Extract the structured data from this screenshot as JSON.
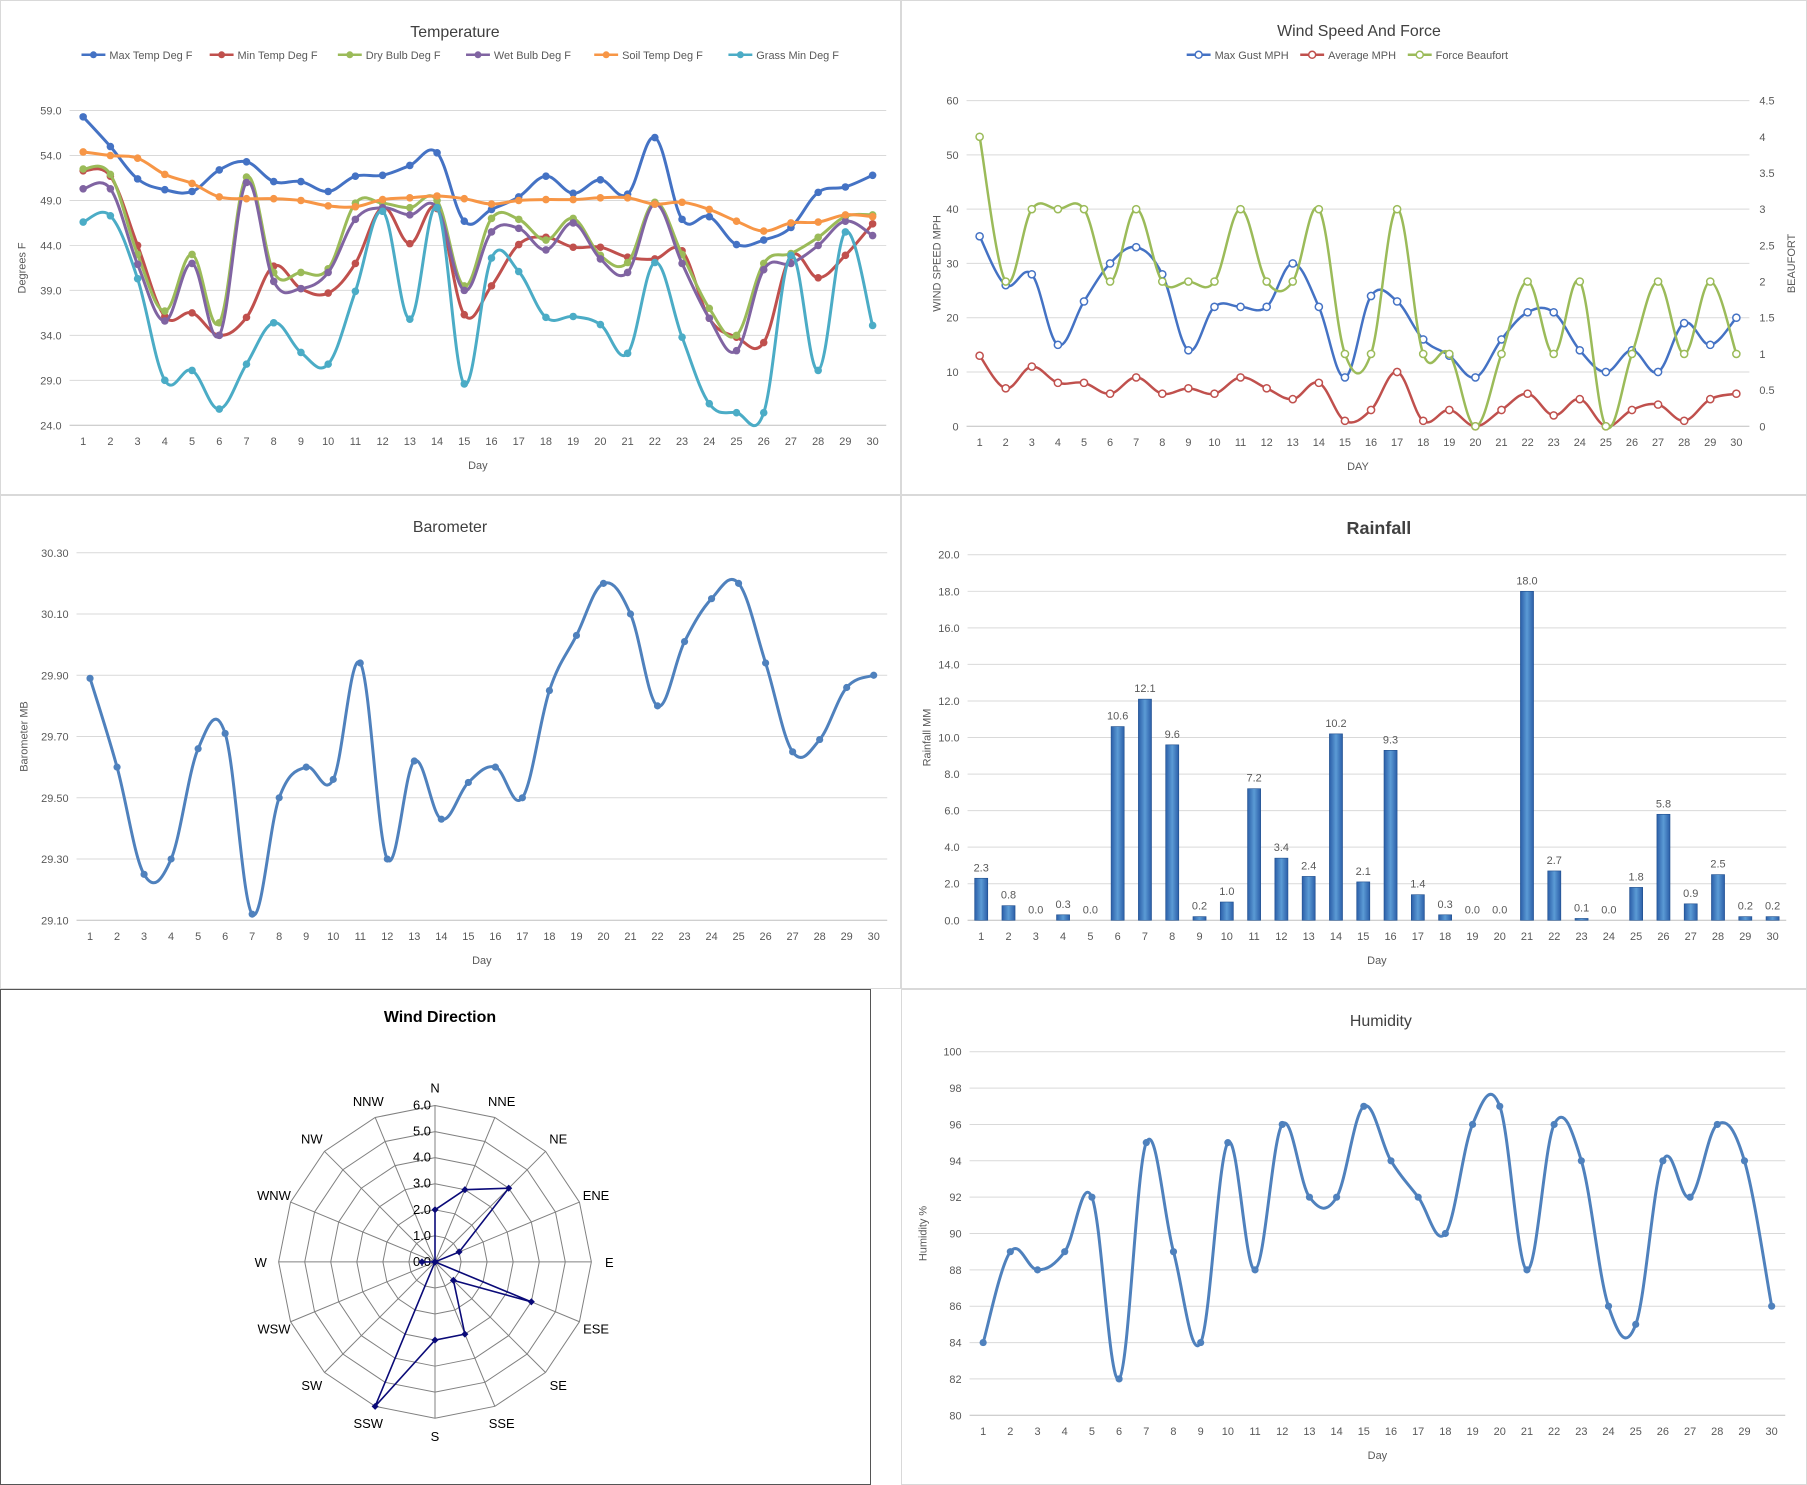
{
  "colors": {
    "axis_text": "#595959",
    "title_text": "#404040",
    "grid": "#d9d9d9",
    "blue": "#4472c4",
    "red": "#c0504d",
    "green": "#9bbb59",
    "purple": "#8064a2",
    "orange": "#f79646",
    "teal": "#4bacc6",
    "navy": "#0a0a78",
    "baro_blue": "#4f81bd"
  },
  "chart_data": [
    {
      "id": "temperature",
      "type": "line",
      "title": "Temperature",
      "xlabel": "Day",
      "ylabel": "Degrees F",
      "x": [
        1,
        2,
        3,
        4,
        5,
        6,
        7,
        8,
        9,
        10,
        11,
        12,
        13,
        14,
        15,
        16,
        17,
        18,
        19,
        20,
        21,
        22,
        23,
        24,
        25,
        26,
        27,
        28,
        29,
        30
      ],
      "ylim": [
        24.0,
        59.0
      ],
      "yticks": [
        "24.0",
        "29.0",
        "34.0",
        "39.0",
        "44.0",
        "49.0",
        "54.0",
        "59.0"
      ],
      "legend_position": "top",
      "grid": true,
      "series": [
        {
          "name": "Max Temp Deg F",
          "color": "#4472c4",
          "values": [
            58.3,
            55.0,
            51.4,
            50.2,
            50.0,
            52.4,
            53.3,
            51.1,
            51.1,
            50.0,
            51.7,
            51.8,
            52.9,
            54.3,
            46.7,
            48.0,
            49.4,
            51.7,
            49.8,
            51.3,
            49.7,
            56.0,
            46.9,
            47.2,
            44.1,
            44.6,
            46.0,
            49.9,
            50.5,
            51.8
          ]
        },
        {
          "name": "Min Temp Deg F",
          "color": "#c0504d",
          "values": [
            52.3,
            51.7,
            44.0,
            36.1,
            36.5,
            34.0,
            36.0,
            41.7,
            39.2,
            38.7,
            42.0,
            48.2,
            44.2,
            48.1,
            36.3,
            39.5,
            44.1,
            44.9,
            43.8,
            43.8,
            42.7,
            42.5,
            43.4,
            35.9,
            33.8,
            33.2,
            42.8,
            40.4,
            42.9,
            46.4
          ]
        },
        {
          "name": "Dry Bulb Deg F",
          "color": "#9bbb59",
          "values": [
            52.5,
            51.9,
            43.0,
            36.7,
            43.0,
            35.4,
            51.6,
            41.0,
            41.0,
            41.4,
            48.7,
            48.7,
            48.2,
            49.0,
            39.5,
            47.0,
            46.9,
            44.6,
            47.0,
            42.9,
            42.1,
            48.8,
            43.0,
            37.0,
            34.0,
            42.0,
            43.1,
            44.9,
            47.2,
            47.4
          ]
        },
        {
          "name": "Wet Bulb Deg F",
          "color": "#8064a2",
          "values": [
            50.3,
            50.3,
            41.9,
            35.6,
            42.0,
            34.0,
            51.0,
            40.0,
            39.2,
            41.0,
            46.9,
            48.2,
            47.4,
            48.2,
            39.0,
            45.5,
            45.9,
            43.5,
            46.5,
            42.5,
            41.0,
            48.6,
            42.0,
            35.9,
            32.3,
            41.3,
            42.0,
            44.0,
            46.7,
            45.1
          ]
        },
        {
          "name": "Soil Temp Deg F",
          "color": "#f79646",
          "values": [
            54.4,
            54.0,
            53.7,
            51.9,
            50.9,
            49.4,
            49.2,
            49.2,
            49.0,
            48.4,
            48.3,
            49.1,
            49.3,
            49.5,
            49.2,
            48.6,
            49.0,
            49.1,
            49.1,
            49.3,
            49.3,
            48.6,
            48.8,
            48.0,
            46.7,
            45.6,
            46.5,
            46.6,
            47.4,
            47.2
          ]
        },
        {
          "name": "Grass Min Deg F",
          "color": "#4bacc6",
          "values": [
            46.6,
            47.3,
            40.3,
            29.0,
            30.1,
            25.8,
            30.8,
            35.4,
            32.1,
            30.8,
            38.9,
            47.8,
            35.8,
            48.2,
            28.6,
            42.6,
            41.1,
            36.0,
            36.1,
            35.2,
            32.0,
            42.1,
            33.8,
            26.4,
            25.4,
            25.4,
            42.9,
            30.1,
            45.5,
            35.1
          ]
        }
      ]
    },
    {
      "id": "wind_speed",
      "type": "line",
      "title": "Wind Speed And Force",
      "xlabel": "DAY",
      "ylabel": "WIND SPEED MPH",
      "y2label": "BEAUFORT",
      "x": [
        1,
        2,
        3,
        4,
        5,
        6,
        7,
        8,
        9,
        10,
        11,
        12,
        13,
        14,
        15,
        16,
        17,
        18,
        19,
        20,
        21,
        22,
        23,
        24,
        25,
        26,
        27,
        28,
        29,
        30
      ],
      "ylim": [
        0,
        60
      ],
      "yticks": [
        "0",
        "10",
        "20",
        "30",
        "40",
        "50",
        "60"
      ],
      "y2lim": [
        0,
        4.5
      ],
      "y2ticks": [
        "0",
        "0.5",
        "1",
        "1.5",
        "2",
        "2.5",
        "3",
        "3.5",
        "4",
        "4.5"
      ],
      "legend_position": "top",
      "grid": true,
      "series": [
        {
          "name": "Max Gust MPH",
          "color": "#4472c4",
          "axis": "left",
          "values": [
            35,
            26,
            28,
            15,
            23,
            30,
            33,
            28,
            14,
            22,
            22,
            22,
            30,
            22,
            9,
            24,
            23,
            16,
            13,
            9,
            16,
            21,
            21,
            14,
            10,
            14,
            10,
            19,
            15,
            20
          ]
        },
        {
          "name": "Average MPH",
          "color": "#c0504d",
          "axis": "left",
          "values": [
            13,
            7,
            11,
            8,
            8,
            6,
            9,
            6,
            7,
            6,
            9,
            7,
            5,
            8,
            1,
            3,
            10,
            1,
            3,
            0,
            3,
            6,
            2,
            5,
            0,
            3,
            4,
            1,
            5,
            6
          ]
        },
        {
          "name": "Force Beaufort",
          "color": "#9bbb59",
          "axis": "right",
          "values": [
            4,
            2,
            3,
            3,
            3,
            2,
            3,
            2,
            2,
            2,
            3,
            2,
            2,
            3,
            1,
            1,
            3,
            1,
            1,
            0,
            1,
            2,
            1,
            2,
            0,
            1,
            2,
            1,
            2,
            1
          ]
        }
      ]
    },
    {
      "id": "barometer",
      "type": "line",
      "title": "Barometer",
      "xlabel": "Day",
      "ylabel": "Barometer MB",
      "x": [
        1,
        2,
        3,
        4,
        5,
        6,
        7,
        8,
        9,
        10,
        11,
        12,
        13,
        14,
        15,
        16,
        17,
        18,
        19,
        20,
        21,
        22,
        23,
        24,
        25,
        26,
        27,
        28,
        29,
        30
      ],
      "ylim": [
        29.1,
        30.3
      ],
      "yticks": [
        "29.10",
        "29.30",
        "29.50",
        "29.70",
        "29.90",
        "30.10",
        "30.30"
      ],
      "grid": true,
      "series": [
        {
          "name": "",
          "color": "#4f81bd",
          "values": [
            29.89,
            29.6,
            29.25,
            29.3,
            29.66,
            29.71,
            29.12,
            29.5,
            29.6,
            29.56,
            29.94,
            29.3,
            29.62,
            29.43,
            29.55,
            29.6,
            29.5,
            29.85,
            30.03,
            30.2,
            30.1,
            29.8,
            30.01,
            30.15,
            30.2,
            29.94,
            29.65,
            29.69,
            29.86,
            29.9
          ]
        }
      ]
    },
    {
      "id": "rainfall",
      "type": "bar",
      "title": "Rainfall",
      "xlabel": "Day",
      "ylabel": "Rainfall MM",
      "categories": [
        "1",
        "2",
        "3",
        "4",
        "5",
        "6",
        "7",
        "8",
        "9",
        "10",
        "11",
        "12",
        "13",
        "14",
        "15",
        "16",
        "17",
        "18",
        "19",
        "20",
        "21",
        "22",
        "23",
        "24",
        "25",
        "26",
        "27",
        "28",
        "29",
        "30"
      ],
      "values": [
        2.3,
        0.8,
        0.0,
        0.3,
        0.0,
        10.6,
        12.1,
        9.6,
        0.2,
        1.0,
        7.2,
        3.4,
        2.4,
        10.2,
        2.1,
        9.3,
        1.4,
        0.3,
        0.0,
        0.0,
        18.0,
        2.7,
        0.1,
        0.0,
        1.8,
        5.8,
        0.9,
        2.5,
        0.2,
        0.2
      ],
      "data_labels": [
        "2.3",
        "0.8",
        "0.0",
        "0.3",
        "0.0",
        "10.6",
        "12.1",
        "9.6",
        "0.2",
        "1.0",
        "7.2",
        "3.4",
        "2.4",
        "10.2",
        "2.1",
        "9.3",
        "1.4",
        "0.3",
        "0.0",
        "0.0",
        "18.0",
        "2.7",
        "0.1",
        "0.0",
        "1.8",
        "5.8",
        "0.9",
        "2.5",
        "0.2",
        "0.2"
      ],
      "ylim": [
        0,
        20
      ],
      "yticks": [
        "0.0",
        "2.0",
        "4.0",
        "6.0",
        "8.0",
        "10.0",
        "12.0",
        "14.0",
        "16.0",
        "18.0",
        "20.0"
      ],
      "grid": true
    },
    {
      "id": "wind_direction",
      "type": "radar",
      "title": "Wind Direction",
      "categories": [
        "N",
        "NNE",
        "NE",
        "ENE",
        "E",
        "ESE",
        "SE",
        "SSE",
        "S",
        "SSW",
        "SW",
        "WSW",
        "W",
        "WNW",
        "NW",
        "NNW"
      ],
      "values": [
        2,
        3,
        4,
        1,
        0,
        4,
        1,
        3,
        3,
        6,
        0,
        0,
        0.5,
        0,
        0,
        0
      ],
      "rlim": [
        0,
        6
      ],
      "rticks": [
        "0.0",
        "1.0",
        "2.0",
        "3.0",
        "4.0",
        "5.0",
        "6.0"
      ]
    },
    {
      "id": "humidity",
      "type": "line",
      "title": "Humidity",
      "xlabel": "Day",
      "ylabel": "Humidity %",
      "x": [
        1,
        2,
        3,
        4,
        5,
        6,
        7,
        8,
        9,
        10,
        11,
        12,
        13,
        14,
        15,
        16,
        17,
        18,
        19,
        20,
        21,
        22,
        23,
        24,
        25,
        26,
        27,
        28,
        29,
        30
      ],
      "ylim": [
        80,
        100
      ],
      "yticks": [
        "80",
        "82",
        "84",
        "86",
        "88",
        "90",
        "92",
        "94",
        "96",
        "98",
        "100"
      ],
      "grid": true,
      "series": [
        {
          "name": "",
          "color": "#4f81bd",
          "values": [
            84,
            89,
            88,
            89,
            92,
            82,
            95,
            89,
            84,
            95,
            88,
            96,
            92,
            92,
            97,
            94,
            92,
            90,
            96,
            97,
            88,
            96,
            94,
            86,
            85,
            94,
            92,
            96,
            94,
            86
          ]
        }
      ]
    }
  ]
}
